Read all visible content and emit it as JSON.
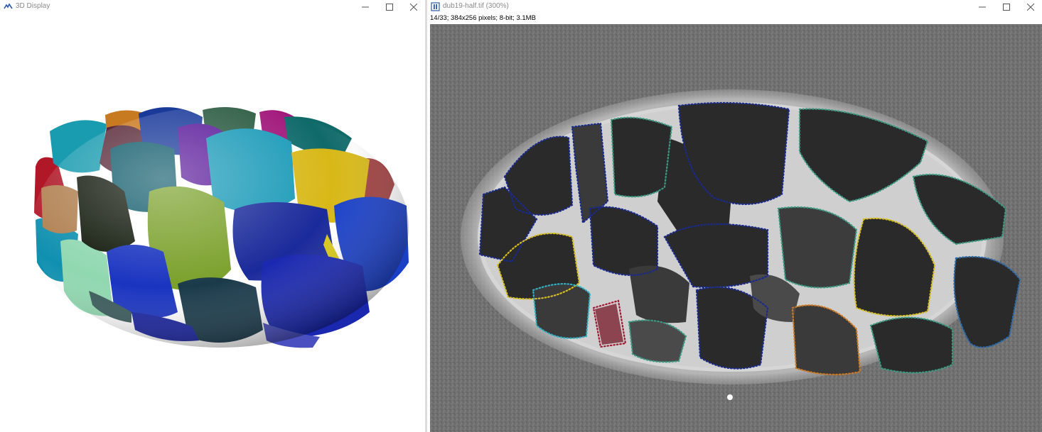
{
  "windows": {
    "display3d": {
      "title": "3D Display",
      "icon": "imagej-3d-icon"
    },
    "image": {
      "title": "dub19-half.tif (300%)",
      "icon": "imagej-image-icon",
      "info": "14/33; 384x256 pixels; 8-bit; 3.1MB"
    }
  },
  "window_controls": [
    "minimize-icon",
    "maximize-icon",
    "close-icon"
  ],
  "colors": {
    "title_text": "#8a8a8a",
    "roi_blue": "#1a2a8c",
    "roi_teal": "#3a9a80",
    "roi_yellow": "#d8c020",
    "roi_orange": "#d07a20",
    "roi_red": "#a01830",
    "roi_cyan": "#30b0c0"
  }
}
